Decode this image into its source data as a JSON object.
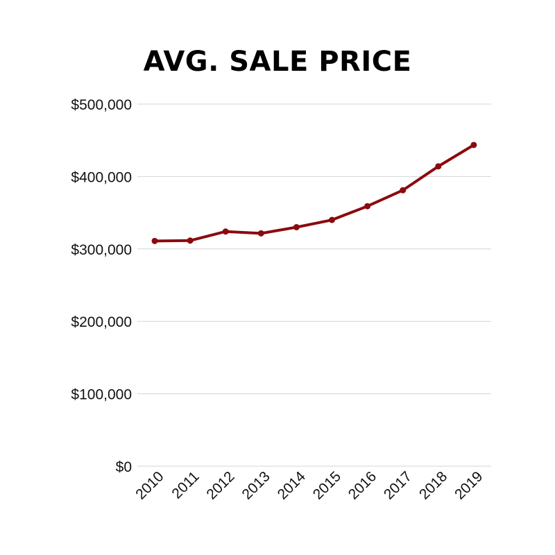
{
  "chart_data": {
    "type": "line",
    "title": "AVG. SALE PRICE",
    "xlabel": "",
    "ylabel": "",
    "categories": [
      "2010",
      "2011",
      "2012",
      "2013",
      "2014",
      "2015",
      "2016",
      "2017",
      "2018",
      "2019"
    ],
    "series": [
      {
        "values": [
          311000,
          311500,
          324000,
          321500,
          330000,
          340000,
          359000,
          381000,
          414000,
          443500
        ]
      }
    ],
    "ylim": [
      0,
      500000
    ],
    "yticks": [
      0,
      100000,
      200000,
      300000,
      400000,
      500000
    ],
    "ytick_labels": [
      "$0",
      "$100,000",
      "$200,000",
      "$300,000",
      "$400,000",
      "$500,000"
    ],
    "grid": true,
    "legend": "none",
    "line_color": "#8b0a0f",
    "grid_color": "#d4d4d4"
  }
}
